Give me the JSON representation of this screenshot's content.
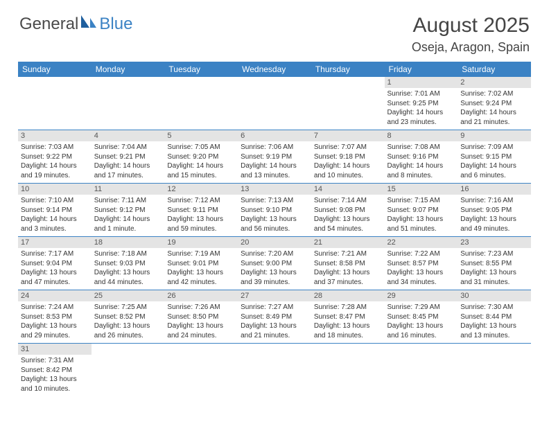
{
  "logo": {
    "text1": "General",
    "text2": "Blue"
  },
  "title": "August 2025",
  "location": "Oseja, Aragon, Spain",
  "colors": {
    "header_bg": "#3b82c4",
    "daynum_bg": "#e4e4e4",
    "border": "#3b82c4",
    "text": "#333333"
  },
  "weekdays": [
    "Sunday",
    "Monday",
    "Tuesday",
    "Wednesday",
    "Thursday",
    "Friday",
    "Saturday"
  ],
  "grid": [
    [
      null,
      null,
      null,
      null,
      null,
      {
        "n": "1",
        "sr": "Sunrise: 7:01 AM",
        "ss": "Sunset: 9:25 PM",
        "dl": "Daylight: 14 hours and 23 minutes."
      },
      {
        "n": "2",
        "sr": "Sunrise: 7:02 AM",
        "ss": "Sunset: 9:24 PM",
        "dl": "Daylight: 14 hours and 21 minutes."
      }
    ],
    [
      {
        "n": "3",
        "sr": "Sunrise: 7:03 AM",
        "ss": "Sunset: 9:22 PM",
        "dl": "Daylight: 14 hours and 19 minutes."
      },
      {
        "n": "4",
        "sr": "Sunrise: 7:04 AM",
        "ss": "Sunset: 9:21 PM",
        "dl": "Daylight: 14 hours and 17 minutes."
      },
      {
        "n": "5",
        "sr": "Sunrise: 7:05 AM",
        "ss": "Sunset: 9:20 PM",
        "dl": "Daylight: 14 hours and 15 minutes."
      },
      {
        "n": "6",
        "sr": "Sunrise: 7:06 AM",
        "ss": "Sunset: 9:19 PM",
        "dl": "Daylight: 14 hours and 13 minutes."
      },
      {
        "n": "7",
        "sr": "Sunrise: 7:07 AM",
        "ss": "Sunset: 9:18 PM",
        "dl": "Daylight: 14 hours and 10 minutes."
      },
      {
        "n": "8",
        "sr": "Sunrise: 7:08 AM",
        "ss": "Sunset: 9:16 PM",
        "dl": "Daylight: 14 hours and 8 minutes."
      },
      {
        "n": "9",
        "sr": "Sunrise: 7:09 AM",
        "ss": "Sunset: 9:15 PM",
        "dl": "Daylight: 14 hours and 6 minutes."
      }
    ],
    [
      {
        "n": "10",
        "sr": "Sunrise: 7:10 AM",
        "ss": "Sunset: 9:14 PM",
        "dl": "Daylight: 14 hours and 3 minutes."
      },
      {
        "n": "11",
        "sr": "Sunrise: 7:11 AM",
        "ss": "Sunset: 9:12 PM",
        "dl": "Daylight: 14 hours and 1 minute."
      },
      {
        "n": "12",
        "sr": "Sunrise: 7:12 AM",
        "ss": "Sunset: 9:11 PM",
        "dl": "Daylight: 13 hours and 59 minutes."
      },
      {
        "n": "13",
        "sr": "Sunrise: 7:13 AM",
        "ss": "Sunset: 9:10 PM",
        "dl": "Daylight: 13 hours and 56 minutes."
      },
      {
        "n": "14",
        "sr": "Sunrise: 7:14 AM",
        "ss": "Sunset: 9:08 PM",
        "dl": "Daylight: 13 hours and 54 minutes."
      },
      {
        "n": "15",
        "sr": "Sunrise: 7:15 AM",
        "ss": "Sunset: 9:07 PM",
        "dl": "Daylight: 13 hours and 51 minutes."
      },
      {
        "n": "16",
        "sr": "Sunrise: 7:16 AM",
        "ss": "Sunset: 9:05 PM",
        "dl": "Daylight: 13 hours and 49 minutes."
      }
    ],
    [
      {
        "n": "17",
        "sr": "Sunrise: 7:17 AM",
        "ss": "Sunset: 9:04 PM",
        "dl": "Daylight: 13 hours and 47 minutes."
      },
      {
        "n": "18",
        "sr": "Sunrise: 7:18 AM",
        "ss": "Sunset: 9:03 PM",
        "dl": "Daylight: 13 hours and 44 minutes."
      },
      {
        "n": "19",
        "sr": "Sunrise: 7:19 AM",
        "ss": "Sunset: 9:01 PM",
        "dl": "Daylight: 13 hours and 42 minutes."
      },
      {
        "n": "20",
        "sr": "Sunrise: 7:20 AM",
        "ss": "Sunset: 9:00 PM",
        "dl": "Daylight: 13 hours and 39 minutes."
      },
      {
        "n": "21",
        "sr": "Sunrise: 7:21 AM",
        "ss": "Sunset: 8:58 PM",
        "dl": "Daylight: 13 hours and 37 minutes."
      },
      {
        "n": "22",
        "sr": "Sunrise: 7:22 AM",
        "ss": "Sunset: 8:57 PM",
        "dl": "Daylight: 13 hours and 34 minutes."
      },
      {
        "n": "23",
        "sr": "Sunrise: 7:23 AM",
        "ss": "Sunset: 8:55 PM",
        "dl": "Daylight: 13 hours and 31 minutes."
      }
    ],
    [
      {
        "n": "24",
        "sr": "Sunrise: 7:24 AM",
        "ss": "Sunset: 8:53 PM",
        "dl": "Daylight: 13 hours and 29 minutes."
      },
      {
        "n": "25",
        "sr": "Sunrise: 7:25 AM",
        "ss": "Sunset: 8:52 PM",
        "dl": "Daylight: 13 hours and 26 minutes."
      },
      {
        "n": "26",
        "sr": "Sunrise: 7:26 AM",
        "ss": "Sunset: 8:50 PM",
        "dl": "Daylight: 13 hours and 24 minutes."
      },
      {
        "n": "27",
        "sr": "Sunrise: 7:27 AM",
        "ss": "Sunset: 8:49 PM",
        "dl": "Daylight: 13 hours and 21 minutes."
      },
      {
        "n": "28",
        "sr": "Sunrise: 7:28 AM",
        "ss": "Sunset: 8:47 PM",
        "dl": "Daylight: 13 hours and 18 minutes."
      },
      {
        "n": "29",
        "sr": "Sunrise: 7:29 AM",
        "ss": "Sunset: 8:45 PM",
        "dl": "Daylight: 13 hours and 16 minutes."
      },
      {
        "n": "30",
        "sr": "Sunrise: 7:30 AM",
        "ss": "Sunset: 8:44 PM",
        "dl": "Daylight: 13 hours and 13 minutes."
      }
    ],
    [
      {
        "n": "31",
        "sr": "Sunrise: 7:31 AM",
        "ss": "Sunset: 8:42 PM",
        "dl": "Daylight: 13 hours and 10 minutes."
      },
      null,
      null,
      null,
      null,
      null,
      null
    ]
  ]
}
